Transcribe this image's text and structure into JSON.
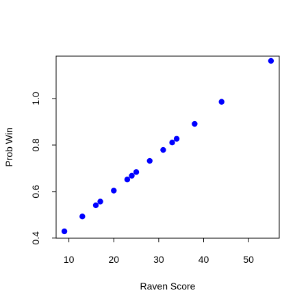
{
  "chart_data": {
    "type": "scatter",
    "title": "",
    "xlabel": "Raven Score",
    "ylabel": "Prob Win",
    "xlim": [
      7.16,
      56.84
    ],
    "ylim": [
      0.3995,
      1.1825
    ],
    "xticks": [
      10,
      20,
      30,
      40,
      50
    ],
    "yticks": [
      0.4,
      0.6,
      0.8,
      1.0
    ],
    "xtick_labels": [
      "10",
      "20",
      "30",
      "40",
      "50"
    ],
    "ytick_labels": [
      "0.4",
      "0.6",
      "0.8",
      "1.0"
    ],
    "grid": false,
    "point_color": "#0000FF",
    "points": [
      {
        "x": 9,
        "y": 0.429
      },
      {
        "x": 13,
        "y": 0.493
      },
      {
        "x": 16,
        "y": 0.541
      },
      {
        "x": 17,
        "y": 0.557
      },
      {
        "x": 20,
        "y": 0.604
      },
      {
        "x": 23,
        "y": 0.652
      },
      {
        "x": 24,
        "y": 0.668
      },
      {
        "x": 25,
        "y": 0.684
      },
      {
        "x": 28,
        "y": 0.732
      },
      {
        "x": 31,
        "y": 0.779
      },
      {
        "x": 33,
        "y": 0.811
      },
      {
        "x": 34,
        "y": 0.827
      },
      {
        "x": 38,
        "y": 0.891
      },
      {
        "x": 44,
        "y": 0.986
      },
      {
        "x": 55,
        "y": 1.162
      }
    ]
  }
}
